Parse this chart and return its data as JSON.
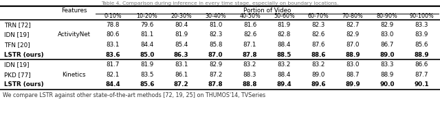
{
  "col_headers": [
    "0-10%",
    "10-20%",
    "20-30%",
    "30-40%",
    "40-50%",
    "50-60%",
    "60-70%",
    "70-80%",
    "80-90%",
    "90-100%"
  ],
  "section1_label": "ActivityNet",
  "section2_label": "Kinetics",
  "s1_labels": [
    "TRN [72]",
    "IDN [19]",
    "TFN [20]",
    "LSTR (ours)"
  ],
  "s1_bolds": [
    false,
    false,
    false,
    true
  ],
  "s1_values": [
    [
      78.8,
      79.6,
      80.4,
      81.0,
      81.6,
      81.9,
      82.3,
      82.7,
      82.9,
      83.3
    ],
    [
      80.6,
      81.1,
      81.9,
      82.3,
      82.6,
      82.8,
      82.6,
      82.9,
      83.0,
      83.9
    ],
    [
      83.1,
      84.4,
      85.4,
      85.8,
      87.1,
      88.4,
      87.6,
      87.0,
      86.7,
      85.6
    ],
    [
      83.6,
      85.0,
      86.3,
      87.0,
      87.8,
      88.5,
      88.6,
      88.9,
      89.0,
      88.9
    ]
  ],
  "s2_labels": [
    "IDN [19]",
    "PKD [77]",
    "LSTR (ours)"
  ],
  "s2_bolds": [
    false,
    false,
    true
  ],
  "s2_values": [
    [
      81.7,
      81.9,
      83.1,
      82.9,
      83.2,
      83.2,
      83.2,
      83.0,
      83.3,
      86.6
    ],
    [
      82.1,
      83.5,
      86.1,
      87.2,
      88.3,
      88.4,
      89.0,
      88.7,
      88.9,
      87.7
    ],
    [
      84.4,
      85.6,
      87.2,
      87.8,
      88.8,
      89.4,
      89.6,
      89.9,
      90.0,
      90.1
    ]
  ],
  "title_text": "Table 4. Comparison during inference in every time stage, especially on boundary locations.",
  "caption_text": "We compare LSTR against other state-of-the-art methods [72, 19, 25] on THUMOS'14, TVSeries",
  "bg_color": "#ffffff",
  "title_color": "#777777",
  "caption_color": "#333333"
}
